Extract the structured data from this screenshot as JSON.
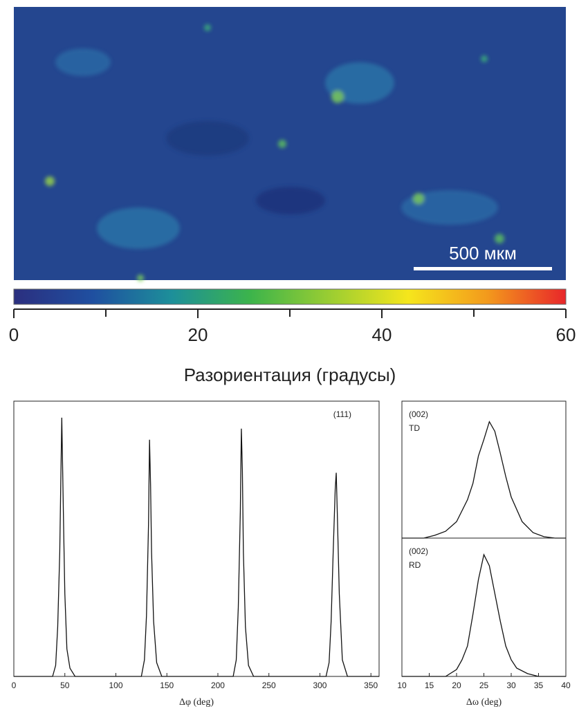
{
  "chart_data": [
    {
      "type": "colorbar",
      "annotation": "500 мкм",
      "xlabel": "Разориентация (градусы)",
      "xlim": [
        0,
        60
      ],
      "xticks": [
        0,
        20,
        40,
        60
      ],
      "minor_xticks": [
        10,
        30,
        50
      ],
      "colors": [
        "#2b2f7f",
        "#1f4fa0",
        "#1d8f9a",
        "#3cb44b",
        "#9acd32",
        "#f5e61c",
        "#f39a1c",
        "#e8262a"
      ]
    },
    {
      "type": "line",
      "annotations": [
        "(111)"
      ],
      "xlabel": "Δφ (deg)",
      "xlim": [
        0,
        358
      ],
      "xticks": [
        0,
        50,
        100,
        150,
        200,
        250,
        300,
        350
      ],
      "ylim": [
        0,
        100
      ],
      "series": [
        {
          "color": "#111111",
          "x": [
            0,
            38,
            41,
            43,
            45,
            46,
            47,
            48,
            49,
            50,
            52,
            55,
            60,
            125,
            128,
            130,
            132,
            133,
            134,
            135,
            137,
            140,
            145,
            215,
            218,
            220,
            222,
            223,
            224,
            225,
            227,
            230,
            235,
            306,
            309,
            311,
            313,
            315,
            316,
            317,
            319,
            322,
            327,
            358
          ],
          "values": [
            0,
            0,
            4,
            18,
            45,
            70,
            94,
            72,
            50,
            30,
            10,
            3,
            0,
            0,
            6,
            22,
            55,
            86,
            70,
            45,
            20,
            5,
            0,
            0,
            6,
            25,
            60,
            90,
            75,
            45,
            18,
            4,
            0,
            0,
            5,
            20,
            45,
            68,
            74,
            60,
            30,
            6,
            0,
            0
          ]
        }
      ]
    },
    {
      "type": "line",
      "annotations": [
        "(002)",
        "TD"
      ],
      "xlim": [
        10,
        40
      ],
      "ylim": [
        0,
        100
      ],
      "series": [
        {
          "color": "#111111",
          "x": [
            10,
            14,
            16,
            18,
            20,
            22,
            23,
            24,
            25,
            26,
            27,
            28,
            29,
            30,
            32,
            34,
            36,
            38,
            40
          ],
          "values": [
            0,
            0,
            2,
            5,
            12,
            28,
            40,
            60,
            72,
            85,
            78,
            62,
            45,
            30,
            12,
            4,
            1,
            0,
            0
          ]
        }
      ]
    },
    {
      "type": "line",
      "annotations": [
        "(002)",
        "RD"
      ],
      "xlabel": "Δω (deg)",
      "xlim": [
        10,
        40
      ],
      "xticks": [
        10,
        15,
        20,
        25,
        30,
        35,
        40
      ],
      "ylim": [
        0,
        100
      ],
      "series": [
        {
          "color": "#111111",
          "x": [
            10,
            18,
            20,
            21,
            22,
            23,
            24,
            25,
            26,
            27,
            28,
            29,
            30,
            31,
            33,
            35,
            40
          ],
          "values": [
            0,
            0,
            5,
            12,
            22,
            45,
            70,
            88,
            80,
            60,
            40,
            22,
            12,
            6,
            2,
            0,
            0
          ]
        }
      ]
    }
  ]
}
